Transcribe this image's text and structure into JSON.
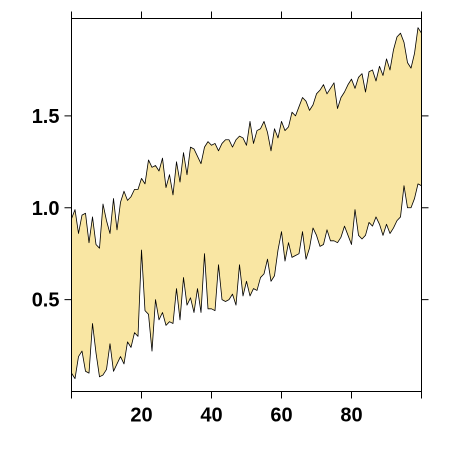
{
  "chart_data": {
    "type": "area",
    "title": "",
    "xlabel": "",
    "ylabel": "",
    "xlim": [
      0,
      100
    ],
    "ylim": [
      0,
      2.03
    ],
    "x_ticks": [
      20,
      40,
      60,
      80
    ],
    "x_tick_labels": [
      "20",
      "40",
      "60",
      "80"
    ],
    "y_ticks": [
      0.5,
      1.0,
      1.5
    ],
    "y_tick_labels": [
      "0.5",
      "1.0",
      "1.5"
    ],
    "grid": false,
    "fill_color": "#f9e6a3",
    "line_color": "#000000",
    "x": [
      0,
      1,
      2,
      3,
      4,
      5,
      6,
      7,
      8,
      9,
      10,
      11,
      12,
      13,
      14,
      15,
      16,
      17,
      18,
      19,
      20,
      21,
      22,
      23,
      24,
      25,
      26,
      27,
      28,
      29,
      30,
      31,
      32,
      33,
      34,
      35,
      36,
      37,
      38,
      39,
      40,
      41,
      42,
      43,
      44,
      45,
      46,
      47,
      48,
      49,
      50,
      51,
      52,
      53,
      54,
      55,
      56,
      57,
      58,
      59,
      60,
      61,
      62,
      63,
      64,
      65,
      66,
      67,
      68,
      69,
      70,
      71,
      72,
      73,
      74,
      75,
      76,
      77,
      78,
      79,
      80,
      81,
      82,
      83,
      84,
      85,
      86,
      87,
      88,
      89,
      90,
      91,
      92,
      93,
      94,
      95,
      96,
      97,
      98,
      99,
      100
    ],
    "series": [
      {
        "values": [
          0.94,
          0.99,
          0.86,
          0.96,
          0.97,
          0.81,
          0.95,
          0.8,
          0.78,
          1.02,
          0.93,
          0.86,
          1.05,
          0.88,
          1.03,
          1.09,
          1.04,
          1.06,
          1.1,
          1.1,
          1.16,
          1.13,
          1.26,
          1.22,
          1.23,
          1.2,
          1.27,
          1.11,
          1.18,
          1.07,
          1.25,
          1.14,
          1.3,
          1.18,
          1.33,
          1.32,
          1.28,
          1.24,
          1.33,
          1.36,
          1.34,
          1.35,
          1.31,
          1.35,
          1.37,
          1.37,
          1.33,
          1.37,
          1.39,
          1.38,
          1.34,
          1.47,
          1.35,
          1.42,
          1.43,
          1.47,
          1.41,
          1.31,
          1.43,
          1.38,
          1.47,
          1.42,
          1.44,
          1.52,
          1.5,
          1.55,
          1.6,
          1.58,
          1.53,
          1.56,
          1.62,
          1.64,
          1.67,
          1.62,
          1.65,
          1.68,
          1.54,
          1.6,
          1.63,
          1.67,
          1.7,
          1.65,
          1.71,
          1.73,
          1.63,
          1.74,
          1.75,
          1.69,
          1.77,
          1.72,
          1.81,
          1.75,
          1.86,
          1.93,
          1.95,
          1.9,
          1.79,
          1.76,
          1.84,
          1.98,
          1.95
        ]
      },
      {
        "values": [
          0.1,
          0.07,
          0.19,
          0.22,
          0.11,
          0.1,
          0.37,
          0.21,
          0.08,
          0.09,
          0.12,
          0.26,
          0.11,
          0.15,
          0.19,
          0.15,
          0.27,
          0.24,
          0.32,
          0.3,
          0.77,
          0.44,
          0.42,
          0.22,
          0.5,
          0.39,
          0.43,
          0.36,
          0.38,
          0.37,
          0.56,
          0.39,
          0.62,
          0.47,
          0.51,
          0.43,
          0.56,
          0.43,
          0.75,
          0.45,
          0.45,
          0.44,
          0.69,
          0.5,
          0.49,
          0.5,
          0.53,
          0.47,
          0.69,
          0.52,
          0.6,
          0.52,
          0.56,
          0.55,
          0.62,
          0.64,
          0.72,
          0.6,
          0.63,
          0.77,
          0.87,
          0.71,
          0.81,
          0.73,
          0.74,
          0.75,
          0.87,
          0.72,
          0.78,
          0.89,
          0.85,
          0.79,
          0.8,
          0.88,
          0.82,
          0.82,
          0.81,
          0.84,
          0.9,
          0.85,
          0.8,
          0.99,
          0.85,
          0.83,
          0.85,
          0.92,
          0.9,
          0.95,
          0.91,
          0.85,
          0.91,
          0.86,
          0.89,
          0.93,
          0.95,
          1.12,
          1.0,
          1.0,
          1.05,
          1.13,
          1.12
        ]
      }
    ]
  }
}
